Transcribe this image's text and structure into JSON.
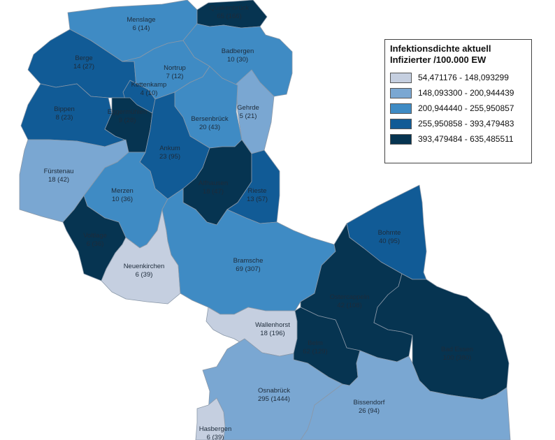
{
  "colors": {
    "c1": "#c5cfe0",
    "c2": "#7aa7d2",
    "c3": "#3f8bc4",
    "c4": "#115b96",
    "c5": "#063451",
    "border": "#8a98a8",
    "label_light": "#1d2b3a",
    "label_dark": "#0a1520"
  },
  "legend": {
    "title_line1": "Infektionsdichte aktuell",
    "title_line2": "Infizierter /100.000 EW",
    "classes": [
      {
        "range": "54,471176 - 148,093299",
        "color": "#c5cfe0"
      },
      {
        "range": "148,093300 - 200,944439",
        "color": "#7aa7d2"
      },
      {
        "range": "200,944440 - 255,950857",
        "color": "#3f8bc4"
      },
      {
        "range": "255,950858 - 393,479483",
        "color": "#115b96"
      },
      {
        "range": "393,479484 - 635,485511",
        "color": "#063451"
      }
    ]
  },
  "regions": [
    {
      "id": "menslage",
      "name": "Menslage",
      "stats": "6 (14)",
      "class": 3
    },
    {
      "id": "quakenbrueck",
      "name": "Quakenbrück",
      "stats": "65 (166)",
      "class": 5
    },
    {
      "id": "badbergen",
      "name": "Badbergen",
      "stats": "10 (30)",
      "class": 3
    },
    {
      "id": "berge",
      "name": "Berge",
      "stats": "14 (27)",
      "class": 4
    },
    {
      "id": "nortrup",
      "name": "Nortrup",
      "stats": "7 (12)",
      "class": 3
    },
    {
      "id": "kettenkamp",
      "name": "Kettenkamp",
      "stats": "4 (10)",
      "class": 4
    },
    {
      "id": "gehrde",
      "name": "Gehrde",
      "stats": "5 (21)",
      "class": 2
    },
    {
      "id": "bippen",
      "name": "Bippen",
      "stats": "8 (23)",
      "class": 4
    },
    {
      "id": "eggermuehlen",
      "name": "Eggermühlen",
      "stats": "9 (28)",
      "class": 5
    },
    {
      "id": "bersenbrueck",
      "name": "Bersenbrück",
      "stats": "20 (43)",
      "class": 3
    },
    {
      "id": "ankum",
      "name": "Ankum",
      "stats": "23 (95)",
      "class": 4
    },
    {
      "id": "fuerstenau",
      "name": "Fürstenau",
      "stats": "18 (42)",
      "class": 2
    },
    {
      "id": "alfhausen",
      "name": "Alfhausen",
      "stats": "18 (47)",
      "class": 5
    },
    {
      "id": "rieste",
      "name": "Rieste",
      "stats": "13 (57)",
      "class": 4
    },
    {
      "id": "merzen",
      "name": "Merzen",
      "stats": "10 (36)",
      "class": 3
    },
    {
      "id": "voltlage",
      "name": "Voltlage",
      "stats": "6 (36)",
      "class": 5
    },
    {
      "id": "bohmte",
      "name": "Bohmte",
      "stats": "40 (95)",
      "class": 4
    },
    {
      "id": "neuenkirchen",
      "name": "Neuenkirchen",
      "stats": "6 (39)",
      "class": 1
    },
    {
      "id": "bramsche",
      "name": "Bramsche",
      "stats": "69 (307)",
      "class": 3
    },
    {
      "id": "ostercappeln",
      "name": "Ostercappeln",
      "stats": "42 (108)",
      "class": 5
    },
    {
      "id": "wallenhorst",
      "name": "Wallenhorst",
      "stats": "18 (196)",
      "class": 1
    },
    {
      "id": "belm",
      "name": "Belm",
      "stats": "62 (129)",
      "class": 5
    },
    {
      "id": "badessen",
      "name": "Bad Essen",
      "stats": "100 (380)",
      "class": 5
    },
    {
      "id": "osnabrueck",
      "name": "Osnabrück",
      "stats": "295 (1444)",
      "class": 2
    },
    {
      "id": "bissendorf",
      "name": "Bissendorf",
      "stats": "26 (94)",
      "class": 2
    },
    {
      "id": "hasbergen",
      "name": "Hasbergen",
      "stats": "6 (39)",
      "class": 1
    }
  ]
}
